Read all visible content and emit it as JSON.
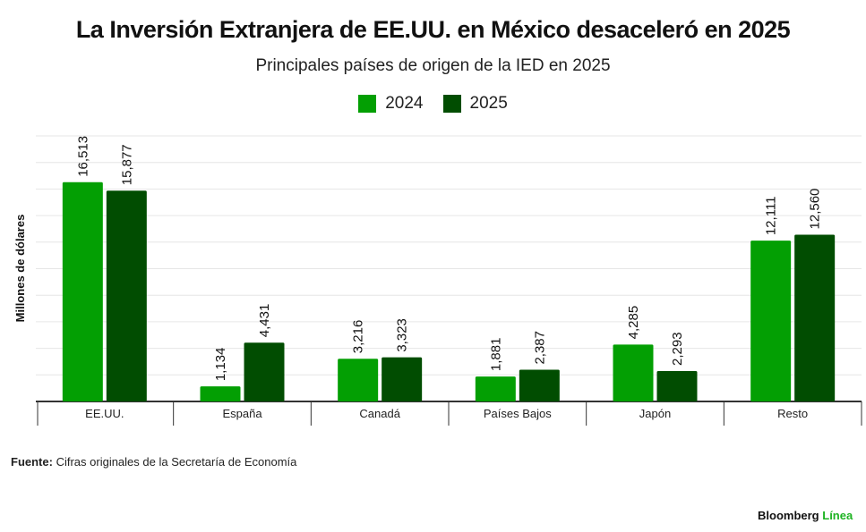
{
  "chart_data": {
    "type": "bar",
    "title": "La Inversión Extranjera de EE.UU. en México desaceleró en 2025",
    "subtitle": "Principales países de origen de la IED en 2025",
    "ylabel": "Millones de dólares",
    "xlabel": "",
    "ylim": [
      0,
      20000
    ],
    "grid": true,
    "legend_position": "top",
    "categories": [
      "EE.UU.",
      "España",
      "Canadá",
      "Países Bajos",
      "Japón",
      "Resto"
    ],
    "series": [
      {
        "name": "2024",
        "color": "#039f03",
        "values": [
          16513,
          1134,
          3216,
          1881,
          4285,
          12111
        ],
        "labels": [
          "16,513",
          "1,134",
          "3,216",
          "1,881",
          "4,285",
          "12,111"
        ]
      },
      {
        "name": "2025",
        "color": "#014d01",
        "values": [
          15877,
          4431,
          3323,
          2387,
          2293,
          12560
        ],
        "labels": [
          "15,877",
          "4,431",
          "3,323",
          "2,387",
          "2,293",
          "12,560"
        ]
      }
    ]
  },
  "source": {
    "label": "Fuente:",
    "text": "Cifras originales de la Secretaría de Economía"
  },
  "logo": {
    "brand": "Bloomberg",
    "sub": "Línea"
  }
}
